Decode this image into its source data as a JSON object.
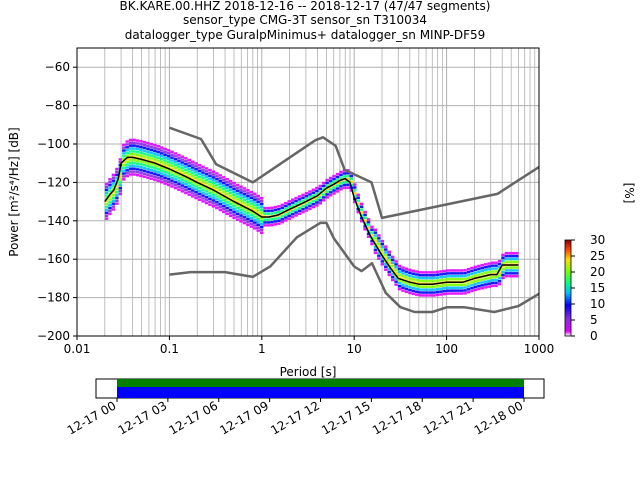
{
  "title_lines": [
    "BK.KARE.00.HHZ   2018-12-16 -- 2018-12-17  (47/47 segments)",
    "sensor_type CMG-3T sensor_sn T310034",
    "datalogger_type GuralpMinimus+ datalogger_sn MINP-DF59"
  ],
  "chart_data": [
    {
      "type": "line",
      "xlabel": "Period [s]",
      "ylabel": "Power [m²/s⁴/Hz] [dB]",
      "xscale": "log",
      "xlim": [
        0.01,
        1000
      ],
      "ylim": [
        -200,
        -50
      ],
      "x_ticks": [
        0.01,
        0.1,
        1,
        10,
        100,
        1000
      ],
      "x_tick_labels": [
        "0.01",
        "0.1",
        "1",
        "10",
        "100",
        "1000"
      ],
      "y_ticks": [
        -200,
        -180,
        -160,
        -140,
        -120,
        -100,
        -80,
        -60
      ],
      "y_tick_labels": [
        "−200",
        "−180",
        "−160",
        "−140",
        "−120",
        "−100",
        "−80",
        "−60"
      ],
      "grid": true,
      "series": [
        {
          "role": "high-noise-model",
          "color": "#666666",
          "x": [
            0.1,
            0.22,
            0.32,
            0.8,
            3.8,
            4.6,
            6.3,
            7.9,
            15.4,
            20,
            354.8,
            1000
          ],
          "y": [
            -91.5,
            -97.4,
            -110.5,
            -120,
            -98,
            -96.5,
            -101,
            -113.5,
            -120,
            -138.5,
            -126,
            -112
          ]
        },
        {
          "role": "low-noise-model",
          "color": "#666666",
          "x": [
            0.1,
            0.17,
            0.4,
            0.8,
            1.24,
            2.4,
            4.3,
            5,
            6,
            10,
            12,
            15.6,
            21.9,
            31.6,
            45,
            70,
            101,
            154,
            328,
            600,
            1000
          ],
          "y": [
            -168,
            -166.7,
            -166.7,
            -169.2,
            -163.7,
            -148.6,
            -141.1,
            -141.1,
            -149,
            -163.8,
            -166.2,
            -162.1,
            -177.5,
            -185,
            -187.5,
            -187.5,
            -185,
            -185,
            -187.5,
            -184.4,
            -178
          ]
        },
        {
          "role": "mode",
          "color": "#000000",
          "x": [
            0.02,
            0.023,
            0.025,
            0.028,
            0.03,
            0.035,
            0.04,
            0.05,
            0.07,
            0.1,
            0.15,
            0.2,
            0.3,
            0.5,
            0.8,
            1.0,
            1.2,
            1.5,
            2.0,
            3.0,
            4.0,
            5.0,
            6.0,
            7.0,
            8.0,
            9.0,
            10,
            12,
            15,
            20,
            25,
            30,
            40,
            50,
            70,
            100,
            150,
            200,
            300,
            350,
            400,
            600
          ],
          "y": [
            -130,
            -126,
            -124,
            -118,
            -110,
            -107,
            -107,
            -108,
            -110,
            -113,
            -117,
            -120,
            -124,
            -130,
            -135,
            -138,
            -138,
            -137,
            -134,
            -130,
            -127,
            -123,
            -121,
            -119,
            -118,
            -120,
            -128,
            -138,
            -148,
            -158,
            -165,
            -170,
            -172,
            -173,
            -173,
            -172,
            -172,
            -170,
            -168,
            -168,
            -163,
            -163
          ]
        }
      ],
      "density_legend": {
        "label": "[%]",
        "ticks": [
          0,
          5,
          10,
          15,
          20,
          25,
          30
        ],
        "tick_labels": [
          "0",
          "5",
          "10",
          "15",
          "20",
          "25",
          "30"
        ],
        "range": [
          0,
          30
        ]
      }
    },
    {
      "type": "timeline",
      "tick_labels": [
        "12-17 00",
        "12-17 03",
        "12-17 06",
        "12-17 09",
        "12-17 12",
        "12-17 15",
        "12-17 18",
        "12-17 21",
        "12-18 00"
      ],
      "bars": [
        {
          "color": "#008000",
          "start": "12-17 00",
          "end": "12-18 00"
        },
        {
          "color": "#0000ff",
          "start": "12-17 00",
          "end": "12-18 00"
        }
      ]
    }
  ]
}
